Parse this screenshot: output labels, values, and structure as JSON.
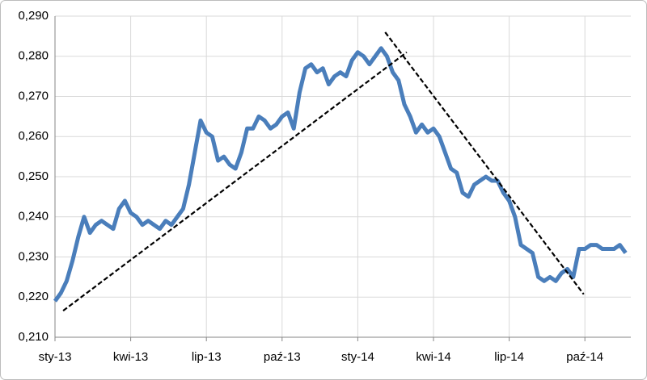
{
  "chart_data": {
    "type": "line",
    "categories": [
      "sty-13",
      null,
      null,
      null,
      null,
      null,
      null,
      null,
      null,
      null,
      null,
      null,
      null,
      "kwi-13",
      null,
      null,
      null,
      null,
      null,
      null,
      null,
      null,
      null,
      null,
      null,
      null,
      "lip-13",
      null,
      null,
      null,
      null,
      null,
      null,
      null,
      null,
      null,
      null,
      null,
      null,
      "paź-13",
      null,
      null,
      null,
      null,
      null,
      null,
      null,
      null,
      null,
      null,
      null,
      null,
      "sty-14",
      null,
      null,
      null,
      null,
      null,
      null,
      null,
      null,
      null,
      null,
      null,
      null,
      "kwi-14",
      null,
      null,
      null,
      null,
      null,
      null,
      null,
      null,
      null,
      null,
      null,
      null,
      "lip-14",
      null,
      null,
      null,
      null,
      null,
      null,
      null,
      null,
      null,
      null,
      null,
      null,
      "paź-14",
      null,
      null,
      null,
      null,
      null,
      null,
      null
    ],
    "series": [
      {
        "color": "#4a7ebb",
        "values": [
          0.219,
          0.221,
          0.224,
          0.229,
          0.235,
          0.24,
          0.236,
          0.238,
          0.239,
          0.238,
          0.237,
          0.242,
          0.244,
          0.241,
          0.24,
          0.238,
          0.239,
          0.238,
          0.237,
          0.239,
          0.238,
          0.24,
          0.242,
          0.248,
          0.256,
          0.264,
          0.261,
          0.26,
          0.254,
          0.255,
          0.253,
          0.252,
          0.256,
          0.262,
          0.262,
          0.265,
          0.264,
          0.262,
          0.263,
          0.265,
          0.266,
          0.262,
          0.271,
          0.277,
          0.278,
          0.276,
          0.277,
          0.273,
          0.275,
          0.276,
          0.275,
          0.279,
          0.281,
          0.28,
          0.278,
          0.28,
          0.282,
          0.28,
          0.276,
          0.274,
          0.268,
          0.265,
          0.261,
          0.263,
          0.261,
          0.262,
          0.26,
          0.256,
          0.252,
          0.251,
          0.246,
          0.245,
          0.248,
          0.249,
          0.25,
          0.249,
          0.249,
          0.246,
          0.244,
          0.24,
          0.233,
          0.232,
          0.231,
          0.225,
          0.224,
          0.225,
          0.224,
          0.226,
          0.227,
          0.225,
          0.232,
          0.232,
          0.233,
          0.233,
          0.232,
          0.232,
          0.232,
          0.233,
          0.231
        ]
      }
    ],
    "trendlines": [
      {
        "x": [
          1.4,
          60.4
        ],
        "y": [
          0.2166,
          0.281
        ]
      },
      {
        "x": [
          56.7,
          90.8
        ],
        "y": [
          0.286,
          0.2207
        ]
      }
    ],
    "ylim": [
      0.21,
      0.29
    ],
    "yticks": [
      {
        "value": 0.21,
        "label": "0,210"
      },
      {
        "value": 0.22,
        "label": "0,220"
      },
      {
        "value": 0.23,
        "label": "0,230"
      },
      {
        "value": 0.24,
        "label": "0,240"
      },
      {
        "value": 0.25,
        "label": "0,250"
      },
      {
        "value": 0.26,
        "label": "0,260"
      },
      {
        "value": 0.27,
        "label": "0,270"
      },
      {
        "value": 0.28,
        "label": "0,280"
      },
      {
        "value": 0.29,
        "label": "0,290"
      }
    ],
    "grid": true
  }
}
